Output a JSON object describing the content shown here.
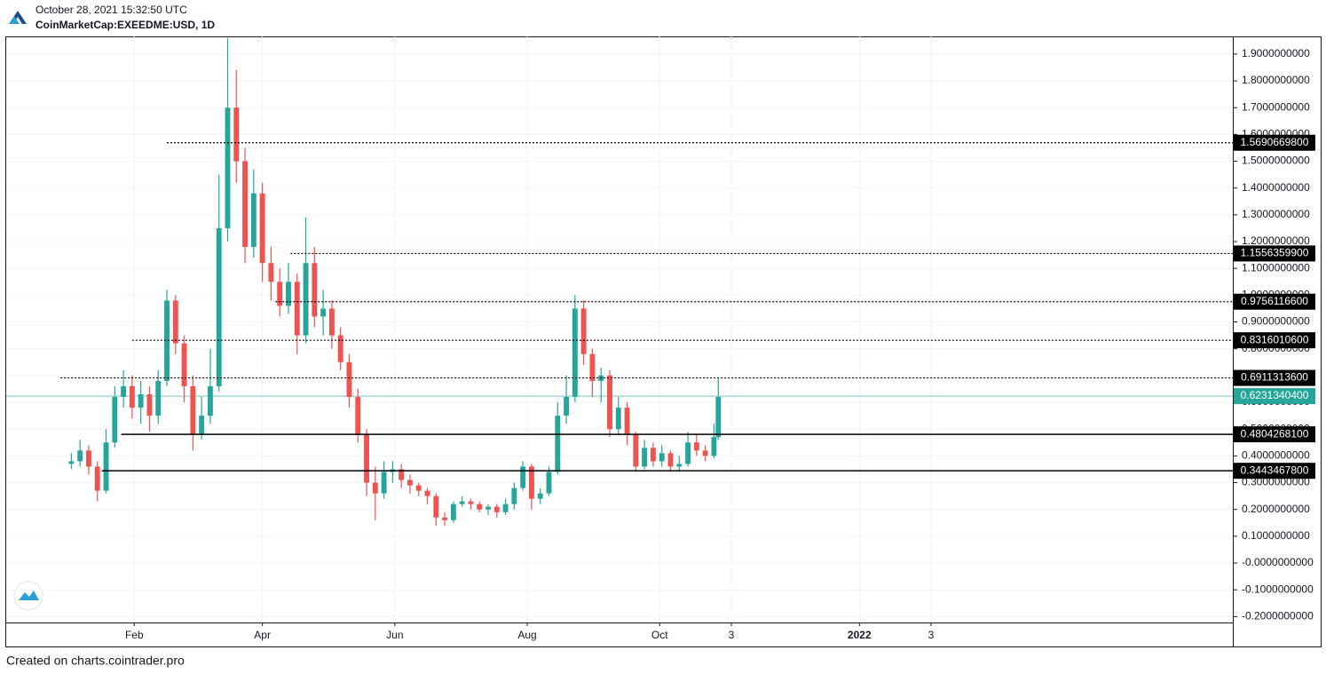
{
  "chart_data": {
    "type": "candlestick",
    "subtitle": "October 28, 2021 15:32:50 UTC",
    "title": "CoinMarketCap:EXEEDME:USD, 1D",
    "up_color": "#26a69a",
    "down_color": "#ef5350",
    "grid": true,
    "x": [
      3,
      7,
      11,
      15,
      19,
      23,
      27,
      31,
      35,
      39,
      43,
      47,
      51,
      55,
      59,
      63,
      67,
      71,
      75,
      79,
      83,
      87,
      91,
      95,
      99,
      103,
      107,
      111,
      115,
      119,
      123,
      127,
      131,
      135,
      139,
      143,
      147,
      151,
      155,
      159,
      163,
      167,
      171,
      175,
      179,
      183,
      187,
      191,
      195,
      199,
      203,
      207,
      211,
      215,
      219,
      223,
      227,
      231,
      235,
      239,
      243,
      247,
      251,
      255,
      259,
      263,
      267,
      271,
      275,
      279,
      283,
      287,
      291,
      295,
      299,
      301
    ],
    "open": [
      0.37,
      0.38,
      0.42,
      0.36,
      0.27,
      0.45,
      0.62,
      0.66,
      0.58,
      0.63,
      0.55,
      0.68,
      0.98,
      0.82,
      0.66,
      0.48,
      0.55,
      0.66,
      1.25,
      1.7,
      1.5,
      1.18,
      1.38,
      1.12,
      1.05,
      0.96,
      1.05,
      0.85,
      1.12,
      0.92,
      0.95,
      0.85,
      0.75,
      0.62,
      0.48,
      0.3,
      0.26,
      0.34,
      0.35,
      0.31,
      0.29,
      0.27,
      0.25,
      0.17,
      0.16,
      0.22,
      0.23,
      0.22,
      0.2,
      0.21,
      0.19,
      0.22,
      0.28,
      0.36,
      0.24,
      0.26,
      0.34,
      0.55,
      0.62,
      0.95,
      0.78,
      0.68,
      0.7,
      0.5,
      0.58,
      0.48,
      0.36,
      0.43,
      0.38,
      0.41,
      0.36,
      0.37,
      0.45,
      0.42,
      0.4,
      0.47
    ],
    "high": [
      0.41,
      0.46,
      0.44,
      0.38,
      0.5,
      0.66,
      0.72,
      0.7,
      0.68,
      0.66,
      0.72,
      1.02,
      1.0,
      0.85,
      0.7,
      0.62,
      0.8,
      1.45,
      1.96,
      1.84,
      1.55,
      1.47,
      1.42,
      1.18,
      1.1,
      1.12,
      1.08,
      1.29,
      1.18,
      1.02,
      0.98,
      0.88,
      0.78,
      0.65,
      0.5,
      0.36,
      0.38,
      0.38,
      0.37,
      0.33,
      0.3,
      0.28,
      0.26,
      0.19,
      0.23,
      0.25,
      0.24,
      0.23,
      0.22,
      0.22,
      0.24,
      0.3,
      0.38,
      0.37,
      0.28,
      0.36,
      0.6,
      0.7,
      1.0,
      0.98,
      0.8,
      0.73,
      0.72,
      0.62,
      0.6,
      0.49,
      0.46,
      0.45,
      0.44,
      0.42,
      0.4,
      0.49,
      0.48,
      0.44,
      0.52,
      0.69
    ],
    "low": [
      0.35,
      0.36,
      0.33,
      0.23,
      0.26,
      0.43,
      0.58,
      0.54,
      0.52,
      0.49,
      0.52,
      0.66,
      0.78,
      0.6,
      0.42,
      0.46,
      0.52,
      0.64,
      1.2,
      1.42,
      1.12,
      1.14,
      1.05,
      0.98,
      0.92,
      0.93,
      0.78,
      0.82,
      0.88,
      0.85,
      0.8,
      0.72,
      0.58,
      0.45,
      0.25,
      0.16,
      0.24,
      0.3,
      0.28,
      0.26,
      0.25,
      0.22,
      0.14,
      0.14,
      0.15,
      0.21,
      0.2,
      0.19,
      0.18,
      0.17,
      0.18,
      0.2,
      0.27,
      0.2,
      0.22,
      0.25,
      0.33,
      0.52,
      0.6,
      0.74,
      0.62,
      0.6,
      0.47,
      0.48,
      0.44,
      0.34,
      0.35,
      0.36,
      0.36,
      0.34,
      0.34,
      0.36,
      0.4,
      0.38,
      0.39,
      0.46
    ],
    "close": [
      0.38,
      0.42,
      0.36,
      0.27,
      0.45,
      0.62,
      0.66,
      0.58,
      0.63,
      0.55,
      0.68,
      0.98,
      0.82,
      0.66,
      0.48,
      0.55,
      0.66,
      1.25,
      1.7,
      1.5,
      1.18,
      1.38,
      1.12,
      1.05,
      0.96,
      1.05,
      0.85,
      1.12,
      0.92,
      0.95,
      0.85,
      0.75,
      0.62,
      0.48,
      0.3,
      0.26,
      0.34,
      0.35,
      0.31,
      0.29,
      0.27,
      0.25,
      0.17,
      0.16,
      0.22,
      0.23,
      0.22,
      0.2,
      0.21,
      0.19,
      0.22,
      0.28,
      0.36,
      0.24,
      0.26,
      0.34,
      0.55,
      0.62,
      0.95,
      0.78,
      0.68,
      0.7,
      0.5,
      0.58,
      0.48,
      0.36,
      0.43,
      0.38,
      0.41,
      0.36,
      0.37,
      0.45,
      0.42,
      0.4,
      0.47,
      0.62
    ],
    "xlim": [
      -27,
      538
    ],
    "ylim": [
      -0.222,
      1.966
    ],
    "xticks": [
      {
        "value": 32,
        "label": "Feb"
      },
      {
        "value": 91,
        "label": "Apr"
      },
      {
        "value": 152,
        "label": "Jun"
      },
      {
        "value": 213,
        "label": "Aug"
      },
      {
        "value": 274,
        "label": "Oct"
      },
      {
        "value": 307,
        "label": "3"
      },
      {
        "value": 366,
        "label": "2022"
      },
      {
        "value": 399,
        "label": "3"
      }
    ],
    "yticks": [
      {
        "value": 1.9,
        "label": "1.9000000000"
      },
      {
        "value": 1.8,
        "label": "1.8000000000"
      },
      {
        "value": 1.7,
        "label": "1.7000000000"
      },
      {
        "value": 1.6,
        "label": "1.6000000000"
      },
      {
        "value": 1.5,
        "label": "1.5000000000"
      },
      {
        "value": 1.4,
        "label": "1.4000000000"
      },
      {
        "value": 1.3,
        "label": "1.3000000000"
      },
      {
        "value": 1.2,
        "label": "1.2000000000"
      },
      {
        "value": 1.1,
        "label": "1.1000000000"
      },
      {
        "value": 1.0,
        "label": "1.0000000000"
      },
      {
        "value": 0.9,
        "label": "0.9000000000"
      },
      {
        "value": 0.8,
        "label": "0.8000000000"
      },
      {
        "value": 0.7,
        "label": "0.7000000000"
      },
      {
        "value": 0.6,
        "label": "0.6000000000"
      },
      {
        "value": 0.5,
        "label": "0.5000000000"
      },
      {
        "value": 0.4,
        "label": "0.4000000000"
      },
      {
        "value": 0.3,
        "label": "0.3000000000"
      },
      {
        "value": 0.2,
        "label": "0.2000000000"
      },
      {
        "value": 0.1,
        "label": "0.1000000000"
      },
      {
        "value": 0,
        "label": "-0.0000000000"
      },
      {
        "value": -0.1,
        "label": "-0.1000000000"
      },
      {
        "value": -0.2,
        "label": "-0.2000000000"
      }
    ],
    "levels": [
      {
        "value": 1.56906698,
        "label": "1.5690669800",
        "from": 47,
        "style": "dashed"
      },
      {
        "value": 1.15563599,
        "label": "1.1556359900",
        "from": 104,
        "style": "dashed"
      },
      {
        "value": 0.97561166,
        "label": "0.9756116600",
        "from": 97,
        "style": "dashed"
      },
      {
        "value": 0.83160106,
        "label": "0.8316010600",
        "from": 31,
        "style": "dashed"
      },
      {
        "value": 0.69113136,
        "label": "0.6911313600",
        "from": -2,
        "style": "dashed"
      },
      {
        "value": 0.48042681,
        "label": "0.4804268100",
        "from": 26,
        "style": "solid"
      },
      {
        "value": 0.34434678,
        "label": "0.3443467800",
        "from": 17,
        "style": "solid"
      }
    ],
    "last_price": {
      "value": 0.62313404,
      "label": "0.6231340400",
      "color": "#26a69a"
    }
  },
  "footer": "Created on charts.cointrader.pro"
}
